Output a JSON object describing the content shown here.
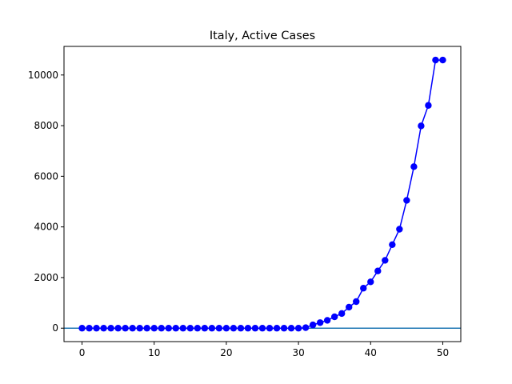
{
  "chart_data": {
    "type": "line",
    "title": "Italy, Active Cases",
    "xlabel": "",
    "ylabel": "",
    "xlim": [
      -2.5,
      52.5
    ],
    "ylim": [
      -530,
      11130
    ],
    "xticks": [
      0,
      10,
      20,
      30,
      40,
      50
    ],
    "yticks": [
      0,
      2000,
      4000,
      6000,
      8000,
      10000
    ],
    "grid": false,
    "legend": "none",
    "series": [
      {
        "color": "#0000ff",
        "marker": "circle",
        "x": [
          0,
          1,
          2,
          3,
          4,
          5,
          6,
          7,
          8,
          9,
          10,
          11,
          12,
          13,
          14,
          15,
          16,
          17,
          18,
          19,
          20,
          21,
          22,
          23,
          24,
          25,
          26,
          27,
          28,
          29,
          30,
          31,
          32,
          33,
          34,
          35,
          36,
          37,
          38,
          39,
          40,
          41,
          42,
          43,
          44,
          45,
          46,
          47,
          48,
          49,
          50
        ],
        "values": [
          0,
          0,
          0,
          0,
          0,
          0,
          0,
          0,
          0,
          0,
          0,
          0,
          0,
          0,
          0,
          0,
          0,
          0,
          0,
          0,
          0,
          0,
          0,
          0,
          0,
          0,
          0,
          0,
          0,
          0,
          0,
          20,
          130,
          220,
          310,
          450,
          580,
          830,
          1050,
          1580,
          1830,
          2260,
          2680,
          3300,
          3910,
          5050,
          6380,
          7990,
          8800,
          10590,
          10590
        ]
      }
    ],
    "reference_lines": [
      {
        "orientation": "horizontal",
        "y": 0,
        "color": "#1f77b4"
      }
    ]
  }
}
